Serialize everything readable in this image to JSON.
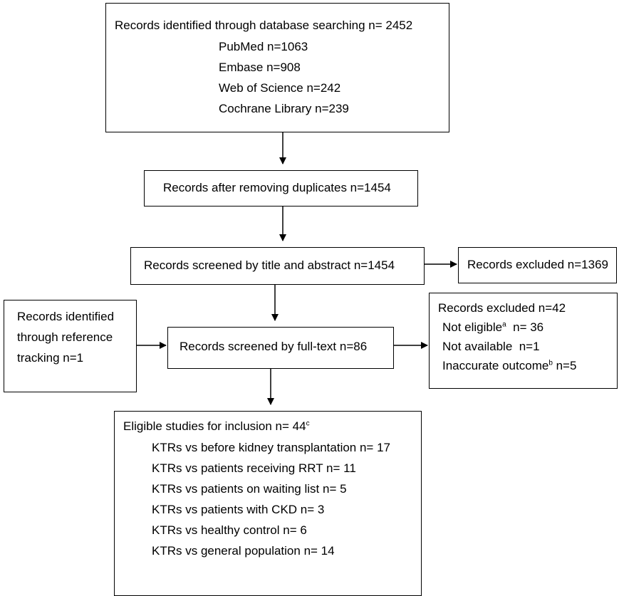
{
  "box_identified": {
    "title": "Records identified through database searching  n= 2452",
    "sources": [
      "PubMed n=1063",
      "Embase n=908",
      "Web of Science n=242",
      "Cochrane Library n=239"
    ]
  },
  "box_after_duplicates": {
    "text": "Records after removing duplicates n=1454"
  },
  "box_screened_title": {
    "text": "Records screened by title and abstract  n=1454"
  },
  "box_excluded_title": {
    "text": "Records excluded n=1369"
  },
  "box_reference": {
    "lines": [
      "Records identified",
      "through reference",
      "tracking  n=1"
    ]
  },
  "box_fulltext": {
    "text": "Records screened by full-text n=86"
  },
  "box_excluded_fulltext": {
    "title": "Records excluded n=42",
    "not_eligible_label": "Not eligible",
    "not_eligible_sup": "a",
    "not_eligible_value": "  n= 36",
    "not_available": "Not available  n=1",
    "inaccurate_label": "Inaccurate outcome",
    "inaccurate_sup": "b",
    "inaccurate_value": " n=5"
  },
  "box_eligible": {
    "title": "Eligible studies for inclusion n= 44",
    "title_sup": "c",
    "items": [
      "KTRs vs before kidney transplantation n= 17",
      "KTRs vs patients receiving RRT n= 11",
      "KTRs vs patients on waiting list n= 5",
      "KTRs vs patients with CKD n= 3",
      "KTRs vs healthy control n= 6",
      "KTRs vs general population n= 14"
    ]
  },
  "colors": {
    "border": "#000000",
    "background": "#ffffff",
    "text": "#000000"
  }
}
